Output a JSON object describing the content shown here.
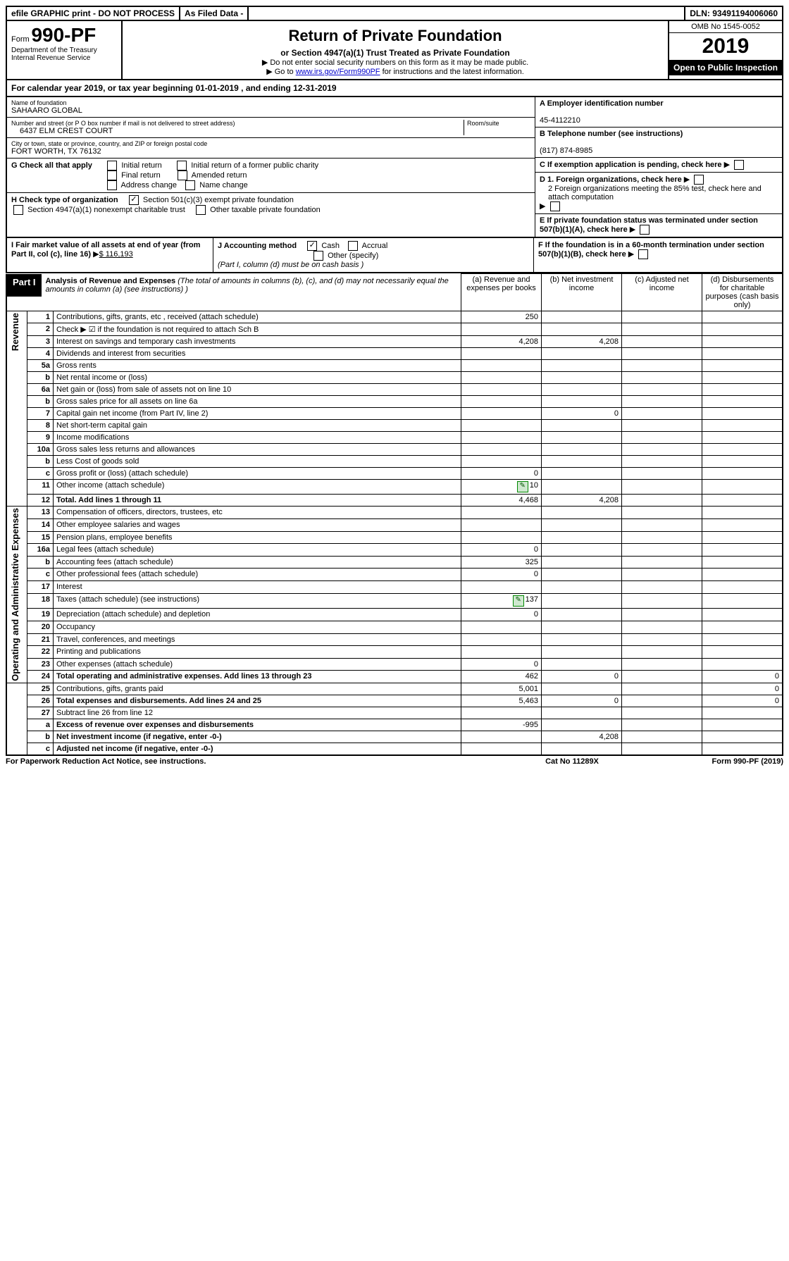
{
  "top": {
    "efile": "efile GRAPHIC print - DO NOT PROCESS",
    "asfiled": "As Filed Data -",
    "dln": "DLN: 93491194006060"
  },
  "header": {
    "form_prefix": "Form",
    "form_number": "990-PF",
    "dept": "Department of the Treasury",
    "irs": "Internal Revenue Service",
    "title": "Return of Private Foundation",
    "subtitle": "or Section 4947(a)(1) Trust Treated as Private Foundation",
    "note1": "▶ Do not enter social security numbers on this form as it may be made public.",
    "note2_pre": "▶ Go to ",
    "note2_link": "www.irs.gov/Form990PF",
    "note2_post": " for instructions and the latest information.",
    "omb": "OMB No 1545-0052",
    "year": "2019",
    "open": "Open to Public Inspection"
  },
  "calyear": "For calendar year 2019, or tax year beginning 01-01-2019                    , and ending 12-31-2019",
  "foundation": {
    "name_label": "Name of foundation",
    "name": "SAHAARO GLOBAL",
    "addr_label": "Number and street (or P O  box number if mail is not delivered to street address)",
    "addr": "6437 ELM CREST COURT",
    "room_label": "Room/suite",
    "city_label": "City or town, state or province, country, and ZIP or foreign postal code",
    "city": "FORT WORTH, TX  76132",
    "ein_label": "A Employer identification number",
    "ein": "45-4112210",
    "phone_label": "B Telephone number (see instructions)",
    "phone": "(817) 874-8985",
    "c_label": "C If exemption application is pending, check here",
    "g_label": "G Check all that apply",
    "g_opts": {
      "initial": "Initial return",
      "initial_former": "Initial return of a former public charity",
      "final": "Final return",
      "amended": "Amended return",
      "address": "Address change",
      "name_change": "Name change"
    },
    "h_label": "H Check type of organization",
    "h_501c3": "Section 501(c)(3) exempt private foundation",
    "h_4947": "Section 4947(a)(1) nonexempt charitable trust",
    "h_other": "Other taxable private foundation",
    "d1": "D 1. Foreign organizations, check here",
    "d2": "2 Foreign organizations meeting the 85% test, check here and attach computation",
    "e": "E  If private foundation status was terminated under section 507(b)(1)(A), check here",
    "i": "I Fair market value of all assets at end of year (from Part II, col  (c), line 16)",
    "i_val": "$  116,193",
    "j": "J Accounting method",
    "j_cash": "Cash",
    "j_accrual": "Accrual",
    "j_other": "Other (specify)",
    "j_note": "(Part I, column (d) must be on cash basis )",
    "f": "F  If the foundation is in a 60-month termination under section 507(b)(1)(B), check here"
  },
  "part1": {
    "label": "Part I",
    "title": "Analysis of Revenue and Expenses",
    "title_note": "(The total of amounts in columns (b), (c), and (d) may not necessarily equal the amounts in column (a) (see instructions) )",
    "col_a": "(a)  Revenue and expenses per books",
    "col_b": "(b) Net investment income",
    "col_c": "(c) Adjusted net income",
    "col_d": "(d) Disbursements for charitable purposes (cash basis only)",
    "side_rev": "Revenue",
    "side_exp": "Operating and Administrative Expenses"
  },
  "rows": [
    {
      "n": "1",
      "desc": "Contributions, gifts, grants, etc , received (attach schedule)",
      "a": "250"
    },
    {
      "n": "2",
      "desc": "Check ▶ ☑ if the foundation is not required to attach Sch B"
    },
    {
      "n": "3",
      "desc": "Interest on savings and temporary cash investments",
      "a": "4,208",
      "b": "4,208"
    },
    {
      "n": "4",
      "desc": "Dividends and interest from securities"
    },
    {
      "n": "5a",
      "desc": "Gross rents"
    },
    {
      "n": "b",
      "desc": "Net rental income or (loss)"
    },
    {
      "n": "6a",
      "desc": "Net gain or (loss) from sale of assets not on line 10"
    },
    {
      "n": "b",
      "desc": "Gross sales price for all assets on line 6a"
    },
    {
      "n": "7",
      "desc": "Capital gain net income (from Part IV, line 2)",
      "b": "0"
    },
    {
      "n": "8",
      "desc": "Net short-term capital gain"
    },
    {
      "n": "9",
      "desc": "Income modifications"
    },
    {
      "n": "10a",
      "desc": "Gross sales less returns and allowances"
    },
    {
      "n": "b",
      "desc": "Less  Cost of goods sold"
    },
    {
      "n": "c",
      "desc": "Gross profit or (loss) (attach schedule)",
      "a": "0"
    },
    {
      "n": "11",
      "desc": "Other income (attach schedule)",
      "a": "10",
      "icon": true
    },
    {
      "n": "12",
      "desc": "Total. Add lines 1 through 11",
      "a": "4,468",
      "b": "4,208",
      "bold": true
    },
    {
      "n": "13",
      "desc": "Compensation of officers, directors, trustees, etc"
    },
    {
      "n": "14",
      "desc": "Other employee salaries and wages"
    },
    {
      "n": "15",
      "desc": "Pension plans, employee benefits"
    },
    {
      "n": "16a",
      "desc": "Legal fees (attach schedule)",
      "a": "0"
    },
    {
      "n": "b",
      "desc": "Accounting fees (attach schedule)",
      "a": "325"
    },
    {
      "n": "c",
      "desc": "Other professional fees (attach schedule)",
      "a": "0"
    },
    {
      "n": "17",
      "desc": "Interest"
    },
    {
      "n": "18",
      "desc": "Taxes (attach schedule) (see instructions)",
      "a": "137",
      "icon": true
    },
    {
      "n": "19",
      "desc": "Depreciation (attach schedule) and depletion",
      "a": "0"
    },
    {
      "n": "20",
      "desc": "Occupancy"
    },
    {
      "n": "21",
      "desc": "Travel, conferences, and meetings"
    },
    {
      "n": "22",
      "desc": "Printing and publications"
    },
    {
      "n": "23",
      "desc": "Other expenses (attach schedule)",
      "a": "0"
    },
    {
      "n": "24",
      "desc": "Total operating and administrative expenses. Add lines 13 through 23",
      "a": "462",
      "b": "0",
      "d": "0",
      "bold": true
    },
    {
      "n": "25",
      "desc": "Contributions, gifts, grants paid",
      "a": "5,001",
      "d": "0"
    },
    {
      "n": "26",
      "desc": "Total expenses and disbursements. Add lines 24 and 25",
      "a": "5,463",
      "b": "0",
      "d": "0",
      "bold": true
    },
    {
      "n": "27",
      "desc": "Subtract line 26 from line 12"
    },
    {
      "n": "a",
      "desc": "Excess of revenue over expenses and disbursements",
      "a": "-995",
      "bold": true
    },
    {
      "n": "b",
      "desc": "Net investment income (if negative, enter -0-)",
      "b": "4,208",
      "bold": true
    },
    {
      "n": "c",
      "desc": "Adjusted net income (if negative, enter -0-)",
      "bold": true
    }
  ],
  "footer": {
    "left": "For Paperwork Reduction Act Notice, see instructions.",
    "mid": "Cat  No  11289X",
    "right": "Form 990-PF (2019)"
  }
}
